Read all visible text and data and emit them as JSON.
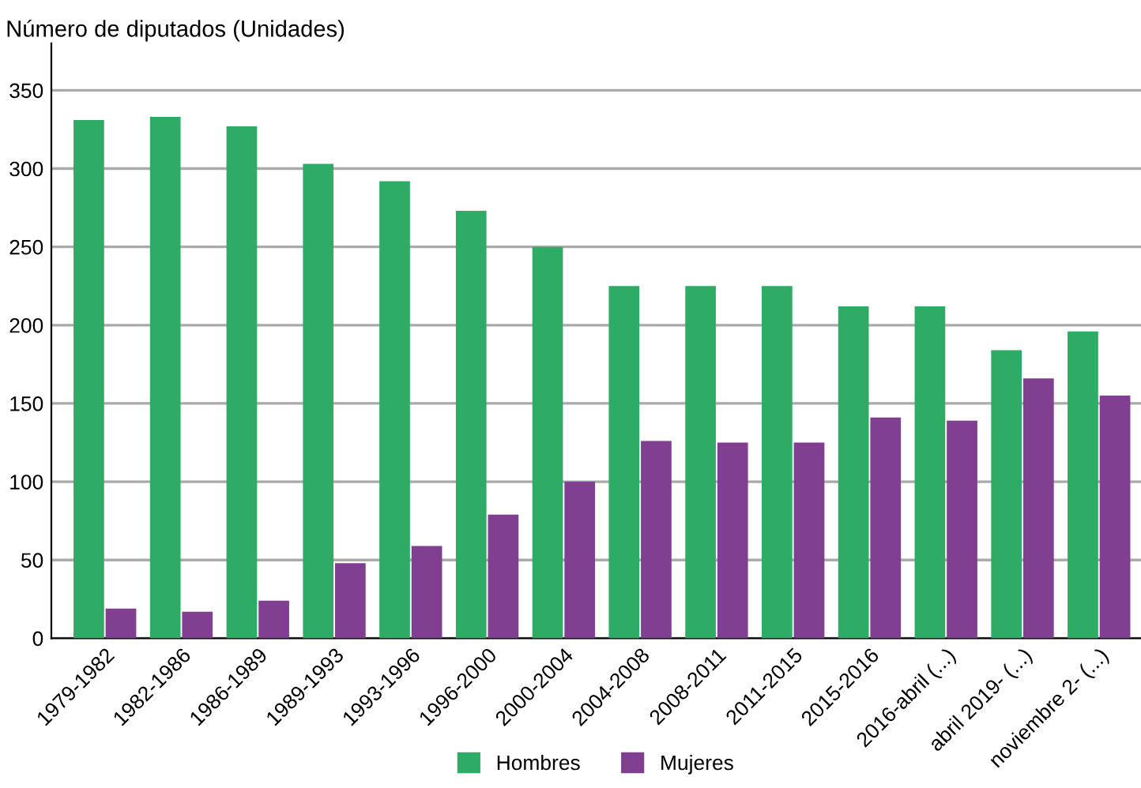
{
  "chart_data": {
    "type": "bar",
    "ylabel": "Número de diputados (Unidades)",
    "categories": [
      "1979-1982",
      "1982-1986",
      "1986-1989",
      "1989-1993",
      "1993-1996",
      "1996-2000",
      "2000-2004",
      "2004-2008",
      "2008-2011",
      "2011-2015",
      "2015-2016",
      "2016-abril (...)",
      "abril 2019- (...)",
      "noviembre 2- (...)"
    ],
    "series": [
      {
        "name": "Hombres",
        "color": "#2eac66",
        "values": [
          331,
          333,
          327,
          303,
          292,
          273,
          250,
          225,
          225,
          225,
          212,
          212,
          184,
          196
        ]
      },
      {
        "name": "Mujeres",
        "color": "#803f91",
        "values": [
          19,
          17,
          24,
          48,
          59,
          79,
          100,
          126,
          125,
          125,
          141,
          139,
          166,
          155
        ]
      }
    ],
    "ylim": [
      0,
      380
    ],
    "yticks": [
      0,
      50,
      100,
      150,
      200,
      250,
      300,
      350
    ],
    "grid": "y",
    "legend": "bottom"
  }
}
